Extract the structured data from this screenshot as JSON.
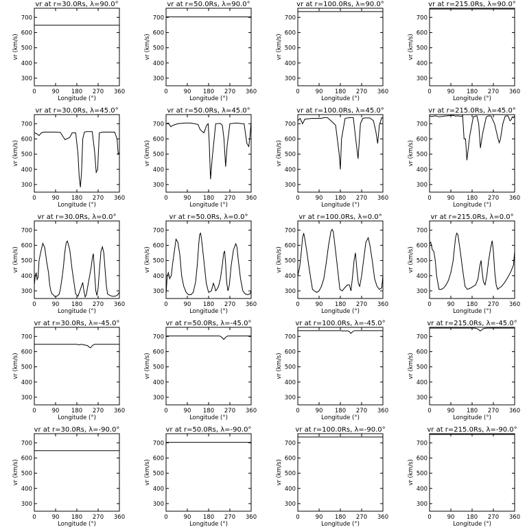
{
  "figure": {
    "radii_labels": [
      "30.0Rs",
      "50.0Rs",
      "100.0Rs",
      "215.0Rs"
    ],
    "latitude_labels": [
      "90.0°",
      "45.0°",
      "0.0°",
      "-45.0°",
      "-90.0°"
    ]
  },
  "chart_data": [
    {
      "type": "line",
      "title": "vr at r=30.0Rs, λ=90.0°",
      "xlabel": "Longitude (°)",
      "ylabel": "vr (km/s)",
      "xlim": [
        0,
        360
      ],
      "ylim": [
        250,
        760
      ],
      "xticks": [
        0,
        90,
        180,
        270,
        360
      ],
      "yticks": [
        300,
        400,
        500,
        600,
        700
      ],
      "x": [
        0,
        360
      ],
      "y": [
        648,
        648
      ]
    },
    {
      "type": "line",
      "title": "vr at r=50.0Rs, λ=90.0°",
      "xlabel": "Longitude (°)",
      "ylabel": "vr (km/s)",
      "xlim": [
        0,
        360
      ],
      "ylim": [
        250,
        760
      ],
      "xticks": [
        0,
        90,
        180,
        270,
        360
      ],
      "yticks": [
        300,
        400,
        500,
        600,
        700
      ],
      "x": [
        0,
        360
      ],
      "y": [
        703,
        703
      ]
    },
    {
      "type": "line",
      "title": "vr at r=100.0Rs, λ=90.0°",
      "xlabel": "Longitude (°)",
      "ylabel": "vr (km/s)",
      "xlim": [
        0,
        360
      ],
      "ylim": [
        250,
        760
      ],
      "xticks": [
        0,
        90,
        180,
        270,
        360
      ],
      "yticks": [
        300,
        400,
        500,
        600,
        700
      ],
      "x": [
        0,
        360
      ],
      "y": [
        738,
        738
      ]
    },
    {
      "type": "line",
      "title": "vr at r=215.0Rs, λ=90.0°",
      "xlabel": "Longitude (°)",
      "ylabel": "vr (km/s)",
      "xlim": [
        0,
        360
      ],
      "ylim": [
        250,
        760
      ],
      "xticks": [
        0,
        90,
        180,
        270,
        360
      ],
      "yticks": [
        300,
        400,
        500,
        600,
        700
      ],
      "x": [
        0,
        360
      ],
      "y": [
        755,
        755
      ]
    },
    {
      "type": "line",
      "title": "vr at r=30.0Rs, λ=45.0°",
      "xlabel": "Longitude (°)",
      "ylabel": "vr (km/s)",
      "xlim": [
        0,
        360
      ],
      "ylim": [
        250,
        760
      ],
      "xticks": [
        0,
        90,
        180,
        270,
        360
      ],
      "yticks": [
        300,
        400,
        500,
        600,
        700
      ],
      "x": [
        0,
        10,
        20,
        30,
        40,
        60,
        80,
        110,
        130,
        150,
        160,
        175,
        185,
        190,
        195,
        200,
        205,
        212,
        220,
        245,
        255,
        262,
        268,
        275,
        290,
        320,
        340,
        350,
        355,
        360
      ],
      "y": [
        640,
        635,
        622,
        640,
        645,
        645,
        645,
        643,
        595,
        610,
        640,
        640,
        500,
        350,
        282,
        390,
        600,
        645,
        648,
        648,
        520,
        380,
        400,
        640,
        645,
        645,
        645,
        600,
        500,
        510
      ]
    },
    {
      "type": "line",
      "title": "vr at r=50.0Rs, λ=45.0°",
      "xlabel": "Longitude (°)",
      "ylabel": "vr (km/s)",
      "xlim": [
        0,
        360
      ],
      "ylim": [
        250,
        760
      ],
      "xticks": [
        0,
        90,
        180,
        270,
        360
      ],
      "yticks": [
        300,
        400,
        500,
        600,
        700
      ],
      "x": [
        0,
        10,
        20,
        30,
        50,
        80,
        100,
        110,
        120,
        135,
        145,
        160,
        172,
        178,
        182,
        188,
        195,
        210,
        230,
        238,
        245,
        252,
        258,
        270,
        300,
        320,
        330,
        342,
        350,
        355,
        360
      ],
      "y": [
        700,
        705,
        680,
        690,
        700,
        705,
        705,
        703,
        700,
        695,
        660,
        640,
        690,
        700,
        600,
        335,
        470,
        700,
        702,
        690,
        600,
        418,
        550,
        700,
        705,
        700,
        700,
        570,
        550,
        620,
        710
      ]
    },
    {
      "type": "line",
      "title": "vr at r=100.0Rs, λ=45.0°",
      "xlabel": "Longitude (°)",
      "ylabel": "vr (km/s)",
      "xlim": [
        0,
        360
      ],
      "ylim": [
        250,
        760
      ],
      "xticks": [
        0,
        90,
        180,
        270,
        360
      ],
      "yticks": [
        300,
        400,
        500,
        600,
        700
      ],
      "x": [
        0,
        10,
        20,
        30,
        60,
        100,
        110,
        125,
        140,
        160,
        175,
        180,
        185,
        200,
        220,
        235,
        245,
        255,
        265,
        275,
        285,
        305,
        320,
        330,
        338,
        345,
        355,
        360
      ],
      "y": [
        720,
        735,
        700,
        730,
        735,
        735,
        740,
        740,
        720,
        690,
        500,
        400,
        600,
        735,
        740,
        740,
        600,
        470,
        700,
        735,
        738,
        738,
        720,
        650,
        570,
        690,
        740,
        735
      ]
    },
    {
      "type": "line",
      "title": "vr at r=215.0Rs, λ=45.0°",
      "xlabel": "Longitude (°)",
      "ylabel": "vr (km/s)",
      "xlim": [
        0,
        360
      ],
      "ylim": [
        250,
        760
      ],
      "xticks": [
        0,
        90,
        180,
        270,
        360
      ],
      "yticks": [
        300,
        400,
        500,
        600,
        700
      ],
      "x": [
        0,
        10,
        25,
        40,
        60,
        80,
        100,
        110,
        120,
        135,
        140,
        146,
        152,
        158,
        170,
        185,
        200,
        208,
        215,
        225,
        240,
        250,
        260,
        275,
        290,
        295,
        300,
        310,
        320,
        332,
        340,
        345,
        350,
        355,
        360
      ],
      "y": [
        750,
        748,
        752,
        745,
        750,
        753,
        755,
        750,
        752,
        748,
        755,
        600,
        600,
        460,
        620,
        745,
        752,
        700,
        540,
        640,
        745,
        752,
        750,
        700,
        600,
        575,
        600,
        700,
        750,
        752,
        720,
        725,
        745,
        740,
        752
      ]
    },
    {
      "type": "line",
      "title": "vr at r=30.0Rs, λ=0.0°",
      "xlabel": "Longitude (°)",
      "ylabel": "vr (km/s)",
      "xlim": [
        0,
        360
      ],
      "ylim": [
        250,
        760
      ],
      "xticks": [
        0,
        90,
        180,
        270,
        360
      ],
      "yticks": [
        300,
        400,
        500,
        600,
        700
      ],
      "x": [
        0,
        4,
        8,
        12,
        16,
        20,
        28,
        36,
        44,
        52,
        60,
        65,
        70,
        75,
        80,
        85,
        95,
        105,
        110,
        118,
        124,
        128,
        132,
        136,
        140,
        150,
        160,
        175,
        185,
        195,
        205,
        210,
        215,
        220,
        225,
        232,
        240,
        246,
        250,
        255,
        260,
        265,
        270,
        276,
        282,
        288,
        294,
        300,
        305,
        310,
        320,
        330,
        340,
        350,
        360
      ],
      "y": [
        340,
        400,
        420,
        375,
        390,
        500,
        560,
        612,
        585,
        495,
        420,
        340,
        300,
        280,
        275,
        265,
        265,
        278,
        310,
        390,
        470,
        540,
        590,
        620,
        628,
        570,
        440,
        280,
        265,
        310,
        355,
        300,
        260,
        275,
        320,
        380,
        450,
        520,
        545,
        420,
        300,
        270,
        320,
        450,
        560,
        590,
        550,
        430,
        330,
        280,
        270,
        265,
        265,
        270,
        290
      ]
    },
    {
      "type": "line",
      "title": "vr at r=50.0Rs, λ=0.0°",
      "xlabel": "Longitude (°)",
      "ylabel": "vr (km/s)",
      "xlim": [
        0,
        360
      ],
      "ylim": [
        250,
        760
      ],
      "xticks": [
        0,
        90,
        180,
        270,
        360
      ],
      "yticks": [
        300,
        400,
        500,
        600,
        700
      ],
      "x": [
        0,
        5,
        10,
        15,
        22,
        28,
        35,
        42,
        50,
        58,
        66,
        75,
        85,
        95,
        105,
        115,
        125,
        132,
        138,
        142,
        146,
        150,
        160,
        170,
        180,
        192,
        200,
        205,
        210,
        215,
        222,
        230,
        238,
        244,
        248,
        252,
        256,
        262,
        268,
        275,
        285,
        295,
        300,
        305,
        315,
        325,
        335,
        345,
        355,
        360
      ],
      "y": [
        280,
        400,
        420,
        380,
        400,
        480,
        560,
        640,
        620,
        540,
        400,
        330,
        290,
        275,
        275,
        290,
        360,
        470,
        600,
        670,
        680,
        640,
        500,
        350,
        290,
        300,
        350,
        330,
        300,
        310,
        330,
        380,
        470,
        550,
        560,
        480,
        360,
        300,
        340,
        460,
        570,
        610,
        590,
        510,
        380,
        300,
        280,
        275,
        280,
        300
      ]
    },
    {
      "type": "line",
      "title": "vr at r=100.0Rs, λ=0.0°",
      "xlabel": "Longitude (°)",
      "ylabel": "vr (km/s)",
      "xlim": [
        0,
        360
      ],
      "ylim": [
        250,
        760
      ],
      "xticks": [
        0,
        90,
        180,
        270,
        360
      ],
      "yticks": [
        300,
        400,
        500,
        600,
        700
      ],
      "x": [
        0,
        8,
        15,
        20,
        25,
        30,
        38,
        45,
        55,
        62,
        70,
        80,
        90,
        100,
        110,
        120,
        130,
        140,
        145,
        150,
        160,
        170,
        178,
        188,
        198,
        210,
        218,
        225,
        232,
        238,
        244,
        250,
        256,
        262,
        270,
        278,
        288,
        298,
        305,
        315,
        325,
        335,
        345,
        355,
        360
      ],
      "y": [
        400,
        460,
        560,
        650,
        680,
        640,
        560,
        480,
        380,
        310,
        300,
        290,
        300,
        330,
        380,
        480,
        600,
        690,
        705,
        690,
        560,
        420,
        310,
        300,
        320,
        340,
        340,
        300,
        400,
        500,
        550,
        440,
        350,
        330,
        400,
        500,
        620,
        650,
        600,
        500,
        380,
        330,
        310,
        320,
        400
      ]
    },
    {
      "type": "line",
      "title": "vr at r=215.0Rs, λ=0.0°",
      "xlabel": "Longitude (°)",
      "ylabel": "vr (km/s)",
      "xlim": [
        0,
        360
      ],
      "ylim": [
        250,
        760
      ],
      "xticks": [
        0,
        90,
        180,
        270,
        360
      ],
      "yticks": [
        300,
        400,
        500,
        600,
        700
      ],
      "x": [
        0,
        5,
        12,
        18,
        24,
        30,
        40,
        50,
        60,
        70,
        80,
        90,
        100,
        105,
        110,
        115,
        120,
        130,
        140,
        150,
        160,
        175,
        185,
        195,
        205,
        212,
        218,
        222,
        228,
        235,
        242,
        250,
        258,
        265,
        270,
        276,
        282,
        288,
        295,
        305,
        320,
        335,
        345,
        355,
        360
      ],
      "y": [
        610,
        620,
        570,
        560,
        500,
        400,
        310,
        310,
        320,
        340,
        370,
        420,
        500,
        580,
        650,
        680,
        670,
        560,
        440,
        330,
        310,
        320,
        330,
        340,
        380,
        460,
        500,
        430,
        360,
        340,
        400,
        500,
        580,
        630,
        560,
        420,
        340,
        310,
        320,
        330,
        360,
        400,
        430,
        470,
        560
      ]
    },
    {
      "type": "line",
      "title": "vr at r=30.0Rs, λ=-45.0°",
      "xlabel": "Longitude (°)",
      "ylabel": "vr (km/s)",
      "xlim": [
        0,
        360
      ],
      "ylim": [
        250,
        760
      ],
      "xticks": [
        0,
        90,
        180,
        270,
        360
      ],
      "yticks": [
        300,
        400,
        500,
        600,
        700
      ],
      "x": [
        0,
        180,
        190,
        200,
        210,
        225,
        232,
        238,
        245,
        255,
        360
      ],
      "y": [
        648,
        648,
        645,
        648,
        645,
        640,
        630,
        625,
        640,
        648,
        648
      ]
    },
    {
      "type": "line",
      "title": "vr at r=50.0Rs, λ=-45.0°",
      "xlabel": "Longitude (°)",
      "ylabel": "vr (km/s)",
      "xlim": [
        0,
        360
      ],
      "ylim": [
        250,
        760
      ],
      "xticks": [
        0,
        90,
        180,
        270,
        360
      ],
      "yticks": [
        300,
        400,
        500,
        600,
        700
      ],
      "x": [
        0,
        225,
        232,
        238,
        244,
        250,
        256,
        262,
        360
      ],
      "y": [
        703,
        703,
        700,
        690,
        680,
        690,
        700,
        703,
        703
      ]
    },
    {
      "type": "line",
      "title": "vr at r=100.0Rs, λ=-45.0°",
      "xlabel": "Longitude (°)",
      "ylabel": "vr (km/s)",
      "xlim": [
        0,
        360
      ],
      "ylim": [
        250,
        760
      ],
      "xticks": [
        0,
        90,
        180,
        270,
        360
      ],
      "yticks": [
        300,
        400,
        500,
        600,
        700
      ],
      "x": [
        0,
        185,
        190,
        196,
        202,
        210,
        218,
        224,
        230,
        236,
        242,
        360
      ],
      "y": [
        738,
        738,
        735,
        738,
        735,
        738,
        732,
        720,
        728,
        736,
        738,
        738
      ]
    },
    {
      "type": "line",
      "title": "vr at r=215.0Rs, λ=-45.0°",
      "xlabel": "Longitude (°)",
      "ylabel": "vr (km/s)",
      "xlim": [
        0,
        360
      ],
      "ylim": [
        250,
        760
      ],
      "xticks": [
        0,
        90,
        180,
        270,
        360
      ],
      "yticks": [
        300,
        400,
        500,
        600,
        700
      ],
      "x": [
        0,
        190,
        200,
        208,
        214,
        220,
        226,
        232,
        240,
        360
      ],
      "y": [
        755,
        755,
        752,
        745,
        735,
        742,
        750,
        753,
        755,
        755
      ]
    },
    {
      "type": "line",
      "title": "vr at r=30.0Rs, λ=-90.0°",
      "xlabel": "Longitude (°)",
      "ylabel": "vr (km/s)",
      "xlim": [
        0,
        360
      ],
      "ylim": [
        250,
        760
      ],
      "xticks": [
        0,
        90,
        180,
        270,
        360
      ],
      "yticks": [
        300,
        400,
        500,
        600,
        700
      ],
      "x": [
        0,
        360
      ],
      "y": [
        648,
        648
      ]
    },
    {
      "type": "line",
      "title": "vr at r=50.0Rs, λ=-90.0°",
      "xlabel": "Longitude (°)",
      "ylabel": "vr (km/s)",
      "xlim": [
        0,
        360
      ],
      "ylim": [
        250,
        760
      ],
      "xticks": [
        0,
        90,
        180,
        270,
        360
      ],
      "yticks": [
        300,
        400,
        500,
        600,
        700
      ],
      "x": [
        0,
        360
      ],
      "y": [
        703,
        703
      ]
    },
    {
      "type": "line",
      "title": "vr at r=100.0Rs, λ=-90.0°",
      "xlabel": "Longitude (°)",
      "ylabel": "vr (km/s)",
      "xlim": [
        0,
        360
      ],
      "ylim": [
        250,
        760
      ],
      "xticks": [
        0,
        90,
        180,
        270,
        360
      ],
      "yticks": [
        300,
        400,
        500,
        600,
        700
      ],
      "x": [
        0,
        360
      ],
      "y": [
        738,
        738
      ]
    },
    {
      "type": "line",
      "title": "vr at r=215.0Rs, λ=-90.0°",
      "xlabel": "Longitude (°)",
      "ylabel": "vr (km/s)",
      "xlim": [
        0,
        360
      ],
      "ylim": [
        250,
        760
      ],
      "xticks": [
        0,
        90,
        180,
        270,
        360
      ],
      "yticks": [
        300,
        400,
        500,
        600,
        700
      ],
      "x": [
        0,
        360
      ],
      "y": [
        755,
        755
      ]
    }
  ]
}
